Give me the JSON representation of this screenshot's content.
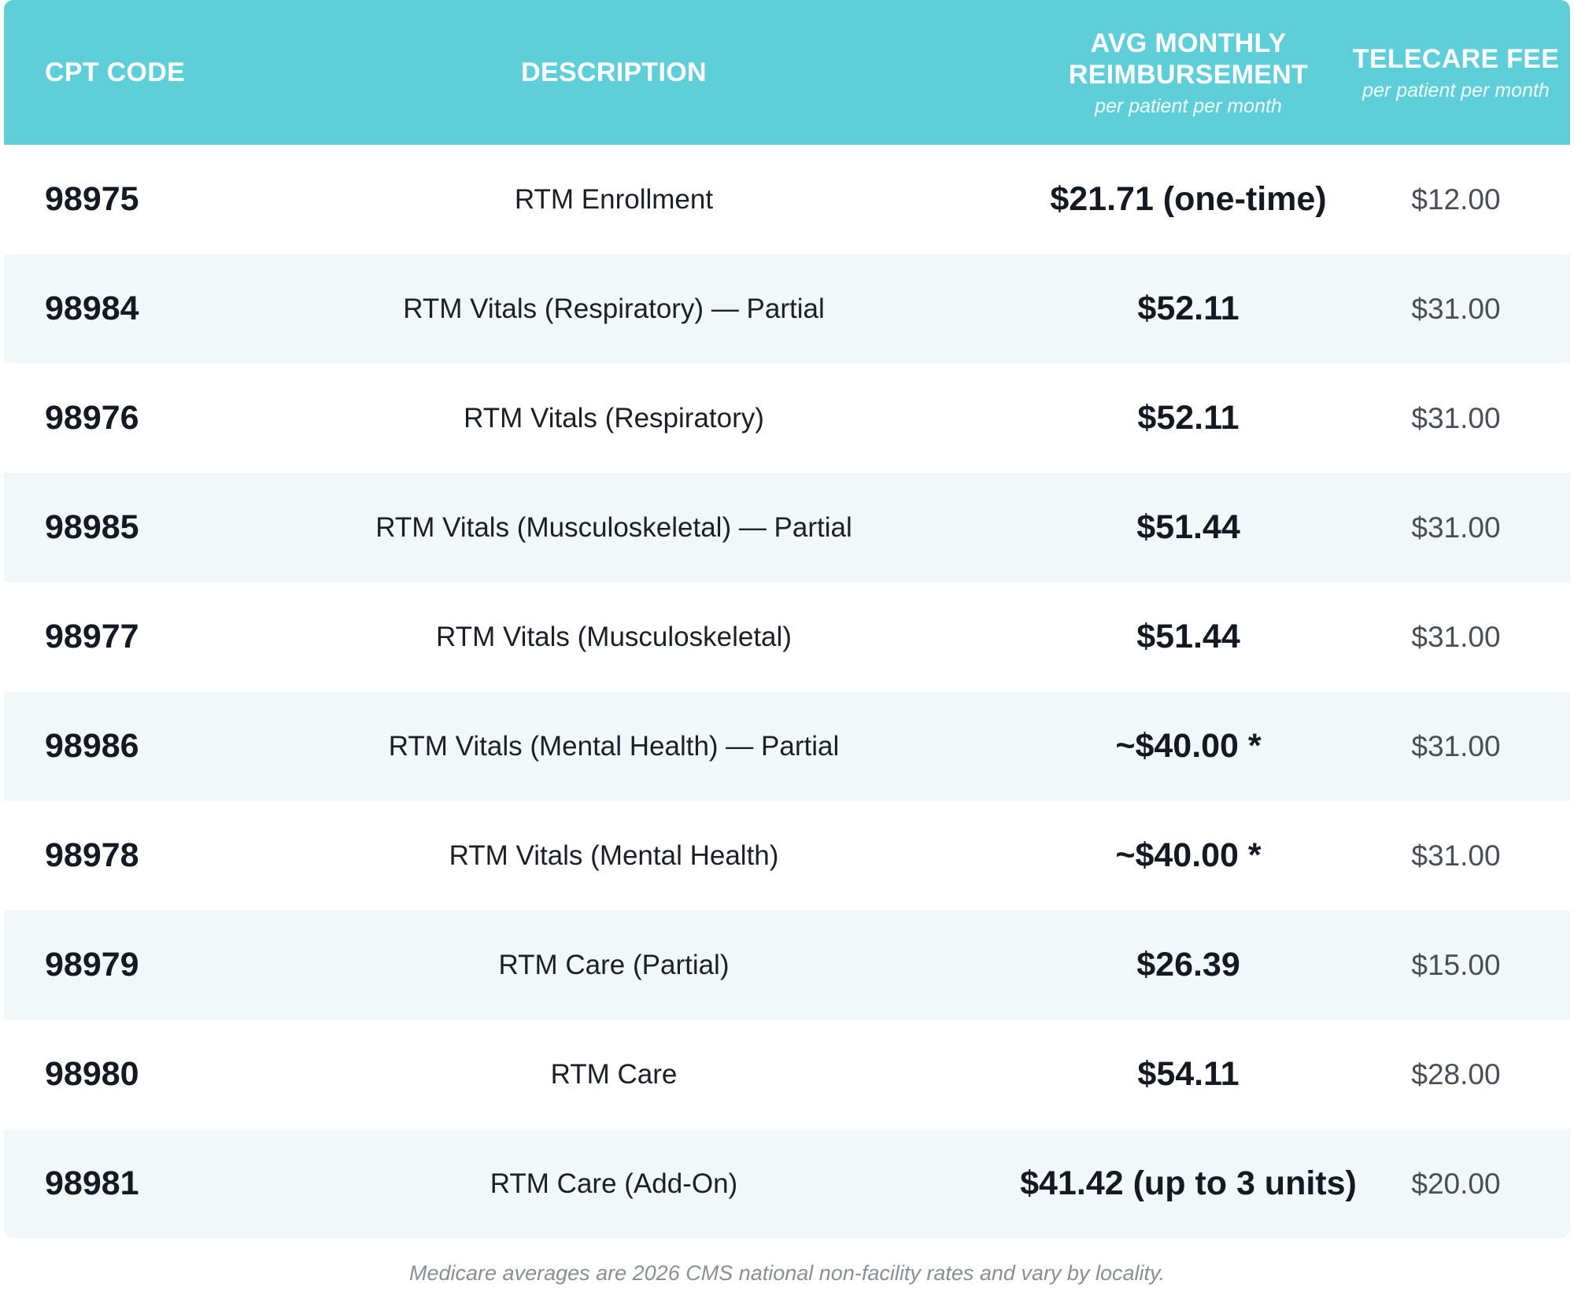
{
  "header": {
    "code_label": "CPT CODE",
    "desc_label": "DESCRIPTION",
    "avg_label_line1": "AVG MONTHLY",
    "avg_label_line2": "REIMBURSEMENT",
    "avg_sub": "per patient per month",
    "fee_label": "TELECARE FEE",
    "fee_sub": "per patient per month"
  },
  "colors": {
    "header_bg": "#5ecfd8",
    "alt_row_bg": "#f2f8fa",
    "text_dark": "#151922",
    "text_muted": "#4a4e57"
  },
  "rows": [
    {
      "code": "98975",
      "description": "RTM Enrollment",
      "avg": "$21.71 (one-time)",
      "fee": "$12.00"
    },
    {
      "code": "98984",
      "description": "RTM Vitals (Respiratory) — Partial",
      "avg": "$52.11",
      "fee": "$31.00"
    },
    {
      "code": "98976",
      "description": "RTM Vitals (Respiratory)",
      "avg": "$52.11",
      "fee": "$31.00"
    },
    {
      "code": "98985",
      "description": "RTM Vitals (Musculoskeletal) — Partial",
      "avg": "$51.44",
      "fee": "$31.00"
    },
    {
      "code": "98977",
      "description": "RTM Vitals (Musculoskeletal)",
      "avg": "$51.44",
      "fee": "$31.00"
    },
    {
      "code": "98986",
      "description": "RTM Vitals (Mental Health) — Partial",
      "avg": "~$40.00 *",
      "fee": "$31.00"
    },
    {
      "code": "98978",
      "description": "RTM Vitals (Mental Health)",
      "avg": "~$40.00 *",
      "fee": "$31.00"
    },
    {
      "code": "98979",
      "description": "RTM Care (Partial)",
      "avg": "$26.39",
      "fee": "$15.00"
    },
    {
      "code": "98980",
      "description": "RTM Care",
      "avg": "$54.11",
      "fee": "$28.00"
    },
    {
      "code": "98981",
      "description": "RTM Care (Add-On)",
      "avg": "$41.42 (up to 3 units)",
      "fee": "$20.00"
    }
  ],
  "footnote": "Medicare averages are 2026 CMS national non-facility rates and vary by locality."
}
